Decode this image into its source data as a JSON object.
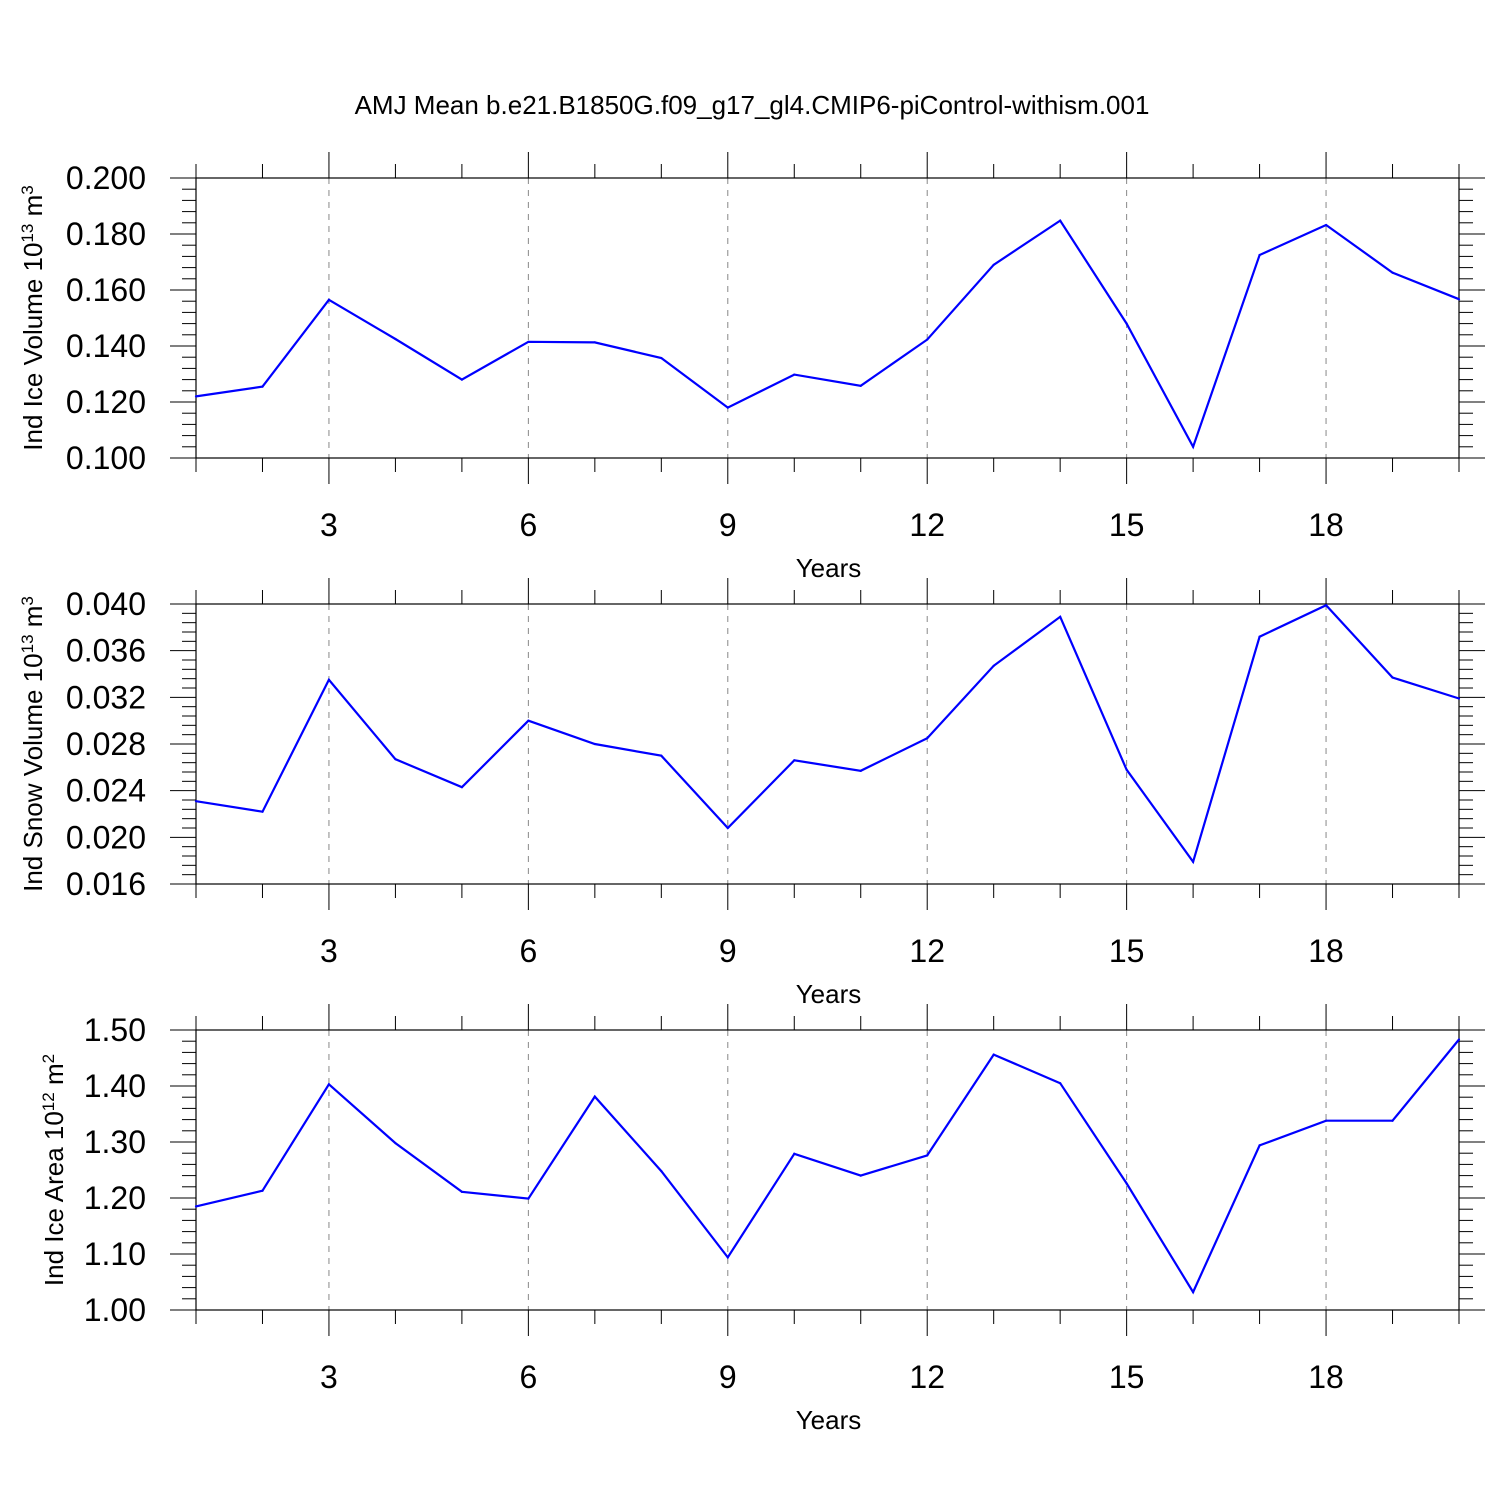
{
  "title": "AMJ Mean b.e21.B1850G.f09_g17_gl4.CMIP6-piControl-withism.001",
  "colors": {
    "line": "#0000ff",
    "grid": "#888888",
    "axis": "#000000"
  },
  "chart_data": [
    {
      "type": "line",
      "xlabel": "Years",
      "ylabel": {
        "base": "Ind Ice Volume 10",
        "exp": "13",
        "unit": " m",
        "unit_exp": "3"
      },
      "xlim": [
        1,
        20
      ],
      "ylim": [
        0.1,
        0.2
      ],
      "xticks": [
        3,
        6,
        9,
        12,
        15,
        18
      ],
      "xtick_labels": [
        "3",
        "6",
        "9",
        "12",
        "15",
        "18"
      ],
      "yticks": [
        0.1,
        0.12,
        0.14,
        0.16,
        0.18,
        0.2
      ],
      "ytick_labels": [
        "0.100",
        "0.120",
        "0.140",
        "0.160",
        "0.180",
        "0.200"
      ],
      "grid": "vertical dashed at major x ticks",
      "x": [
        1,
        2,
        3,
        4,
        5,
        6,
        7,
        8,
        9,
        10,
        11,
        12,
        13,
        14,
        15,
        16,
        17,
        18,
        19,
        20
      ],
      "y": [
        0.122,
        0.1255,
        0.1565,
        0.1425,
        0.128,
        0.1415,
        0.1413,
        0.1357,
        0.118,
        0.1298,
        0.1258,
        0.1423,
        0.169,
        0.1848,
        0.148,
        0.104,
        0.1725,
        0.1832,
        0.1662,
        0.1567
      ]
    },
    {
      "type": "line",
      "xlabel": "Years",
      "ylabel": {
        "base": "Ind Snow Volume 10",
        "exp": "13",
        "unit": " m",
        "unit_exp": "3"
      },
      "xlim": [
        1,
        20
      ],
      "ylim": [
        0.016,
        0.04
      ],
      "xticks": [
        3,
        6,
        9,
        12,
        15,
        18
      ],
      "xtick_labels": [
        "3",
        "6",
        "9",
        "12",
        "15",
        "18"
      ],
      "yticks": [
        0.016,
        0.02,
        0.024,
        0.028,
        0.032,
        0.036,
        0.04
      ],
      "ytick_labels": [
        "0.016",
        "0.020",
        "0.024",
        "0.028",
        "0.032",
        "0.036",
        "0.040"
      ],
      "grid": "vertical dashed at major x ticks",
      "x": [
        1,
        2,
        3,
        4,
        5,
        6,
        7,
        8,
        9,
        10,
        11,
        12,
        13,
        14,
        15,
        16,
        17,
        18,
        19,
        20
      ],
      "y": [
        0.0231,
        0.0222,
        0.0335,
        0.0267,
        0.0243,
        0.03,
        0.028,
        0.027,
        0.0208,
        0.0266,
        0.0257,
        0.0285,
        0.0347,
        0.0389,
        0.0258,
        0.0179,
        0.0372,
        0.0399,
        0.0337,
        0.0319
      ]
    },
    {
      "type": "line",
      "xlabel": "Years",
      "ylabel": {
        "base": "Ind Ice Area 10",
        "exp": "12",
        "unit": " m",
        "unit_exp": "2"
      },
      "xlim": [
        1,
        20
      ],
      "ylim": [
        1.0,
        1.5
      ],
      "xticks": [
        3,
        6,
        9,
        12,
        15,
        18
      ],
      "xtick_labels": [
        "3",
        "6",
        "9",
        "12",
        "15",
        "18"
      ],
      "yticks": [
        1.0,
        1.1,
        1.2,
        1.3,
        1.4,
        1.5
      ],
      "ytick_labels": [
        "1.00",
        "1.10",
        "1.20",
        "1.30",
        "1.40",
        "1.50"
      ],
      "grid": "vertical dashed at major x ticks",
      "x": [
        1,
        2,
        3,
        4,
        5,
        6,
        7,
        8,
        9,
        10,
        11,
        12,
        13,
        14,
        15,
        16,
        17,
        18,
        19,
        20
      ],
      "y": [
        1.185,
        1.213,
        1.403,
        1.298,
        1.211,
        1.199,
        1.381,
        1.248,
        1.094,
        1.279,
        1.24,
        1.276,
        1.456,
        1.405,
        1.226,
        1.032,
        1.294,
        1.338,
        1.338,
        1.483
      ]
    }
  ]
}
